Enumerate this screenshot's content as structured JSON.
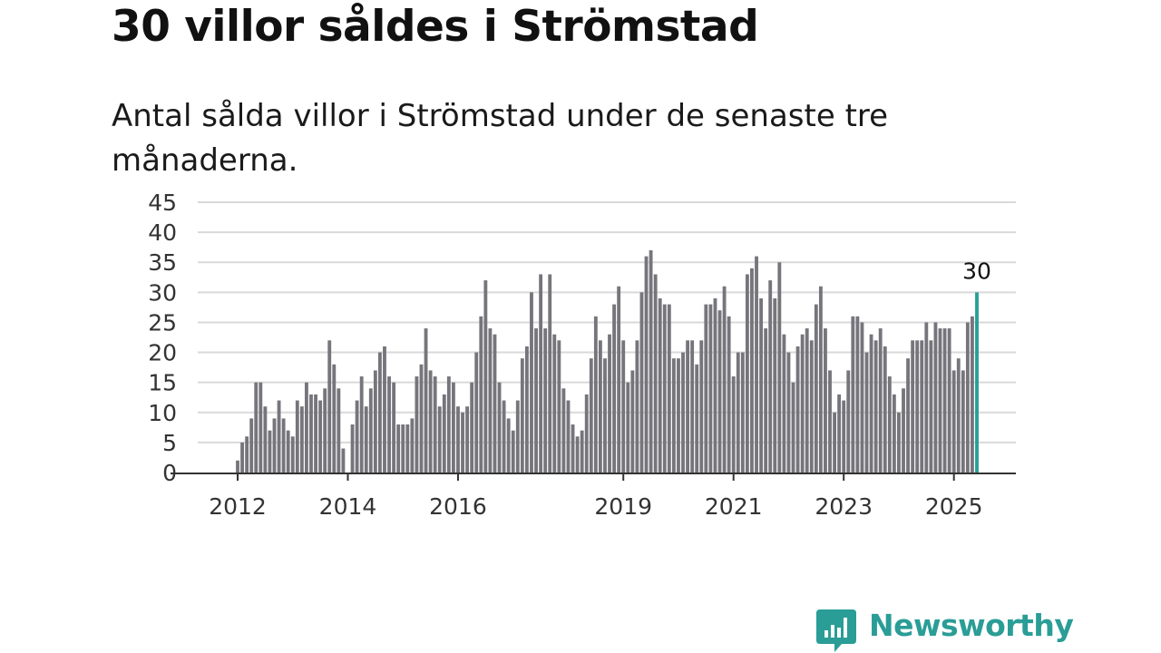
{
  "title": "30 villor såldes i Strömstad",
  "subtitle": "Antal sålda villor i Strömstad under de senaste tre månaderna.",
  "logo": {
    "text": "Newsworthy",
    "icon": "bar-chart-speech-bubble-icon",
    "color": "#2a9d96"
  },
  "chart_data": {
    "type": "bar",
    "title": "30 villor såldes i Strömstad",
    "subtitle": "Antal sålda villor i Strömstad under de senaste tre månaderna.",
    "xlabel": "",
    "ylabel": "",
    "ylim": [
      0,
      45
    ],
    "y_ticks": [
      0,
      5,
      10,
      15,
      20,
      25,
      30,
      35,
      40,
      45
    ],
    "x_tick_labels": [
      "2012",
      "2014",
      "2016",
      "2019",
      "2021",
      "2023",
      "2025"
    ],
    "grid": true,
    "bar_color": "#76757c",
    "highlight_color": "#2a9d96",
    "highlight_label": "30",
    "series": [
      {
        "values": [
          2,
          5,
          6,
          9,
          15,
          15,
          11,
          7,
          9,
          12,
          9,
          7,
          6,
          12,
          11,
          15,
          13,
          13,
          12,
          14,
          22,
          18,
          14,
          4,
          0,
          8,
          12,
          16,
          11,
          14,
          17,
          20,
          21,
          16,
          15,
          8,
          8,
          8,
          9,
          16,
          18,
          24,
          17,
          16,
          11,
          13,
          16,
          15,
          11,
          10,
          11,
          15,
          20,
          26,
          32,
          24,
          23,
          15,
          12,
          9,
          7,
          12,
          19,
          21,
          30,
          24,
          33,
          24,
          33,
          23,
          22,
          14,
          12,
          8,
          6,
          7,
          13,
          19,
          26,
          22,
          19,
          23,
          28,
          31,
          22,
          15,
          17,
          22,
          30,
          36,
          37,
          33,
          29,
          28,
          28,
          19,
          19,
          20,
          22,
          22,
          18,
          22,
          28,
          28,
          29,
          27,
          31,
          26,
          16,
          20,
          20,
          33,
          34,
          36,
          29,
          24,
          32,
          29,
          35,
          23,
          20,
          15,
          21,
          23,
          24,
          22,
          28,
          31,
          24,
          17,
          10,
          13,
          12,
          17,
          26,
          26,
          25,
          20,
          23,
          22,
          24,
          21,
          16,
          13,
          10,
          14,
          19,
          22,
          22,
          22,
          25,
          22,
          25,
          24,
          24,
          24,
          17,
          19,
          17,
          25,
          26,
          30
        ]
      }
    ]
  }
}
